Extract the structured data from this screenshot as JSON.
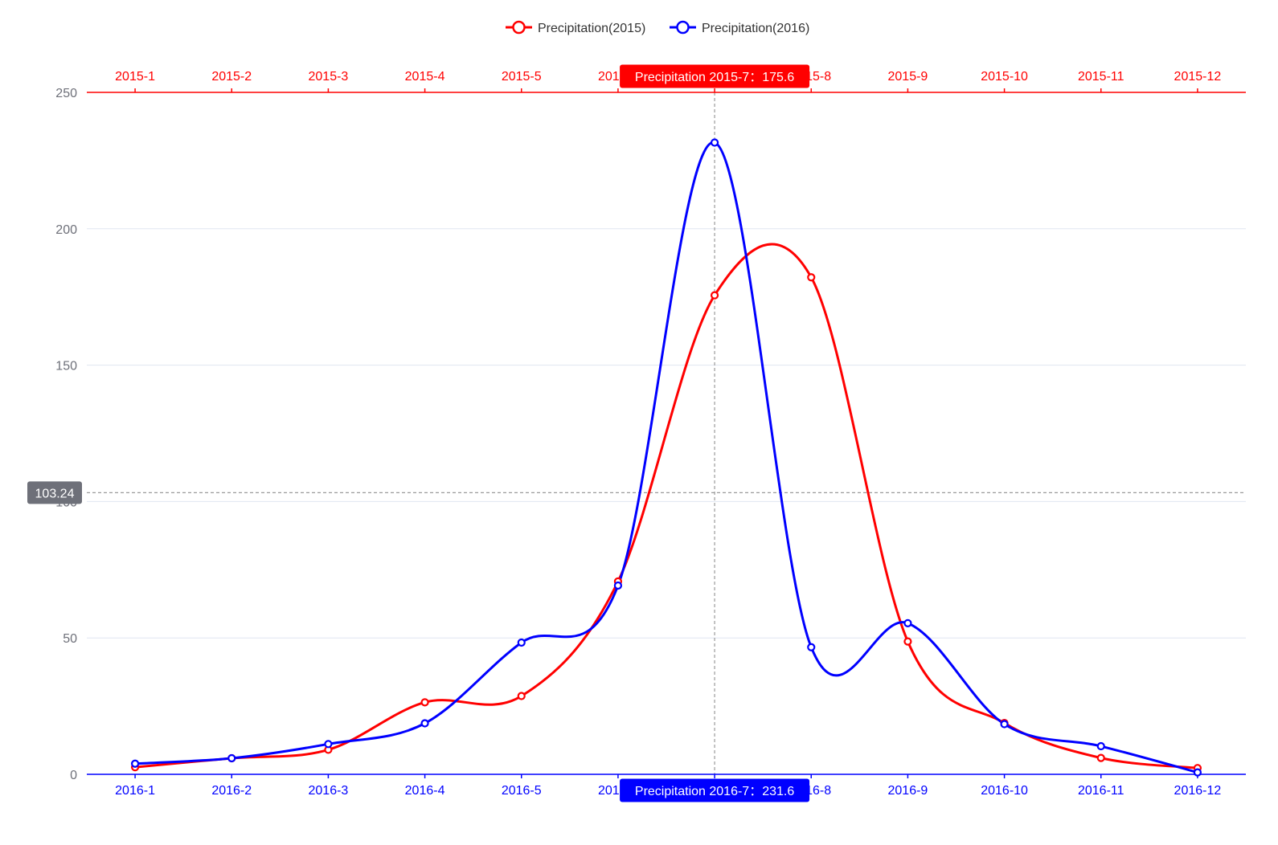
{
  "colors": {
    "series_2015": "#ff0000",
    "series_2016": "#0000ff",
    "grid": "#e0e6f1",
    "y_axis_label": "#6e7079",
    "crosshair": "#999999",
    "y_pointer_bg": "#6e7079"
  },
  "legend": {
    "items": [
      {
        "label": "Precipitation(2015)",
        "color_key": "series_2015",
        "icon": "circle-line-icon"
      },
      {
        "label": "Precipitation(2016)",
        "color_key": "series_2016",
        "icon": "circle-line-icon"
      }
    ],
    "placement": "top-center"
  },
  "pointer": {
    "top_label": "Precipitation  2015-7：175.6",
    "bottom_label": "Precipitation  2016-7：231.6",
    "y_label": "103.24",
    "y_value": 103.24,
    "category_index": 6
  },
  "chart_data": {
    "type": "line",
    "smooth": true,
    "x_top": {
      "categories": [
        "2015-1",
        "2015-2",
        "2015-3",
        "2015-4",
        "2015-5",
        "2015-6",
        "2015-7",
        "2015-8",
        "2015-9",
        "2015-10",
        "2015-11",
        "2015-12"
      ],
      "color_key": "series_2015"
    },
    "x_bottom": {
      "categories": [
        "2016-1",
        "2016-2",
        "2016-3",
        "2016-4",
        "2016-5",
        "2016-6",
        "2016-7",
        "2016-8",
        "2016-9",
        "2016-10",
        "2016-11",
        "2016-12"
      ],
      "color_key": "series_2016"
    },
    "y": {
      "min": 0,
      "max": 250,
      "ticks": [
        0,
        50,
        100,
        150,
        200,
        250
      ]
    },
    "grid": true,
    "series": [
      {
        "name": "Precipitation(2015)",
        "axis": "top",
        "color_key": "series_2015",
        "values": [
          2.6,
          5.9,
          9.0,
          26.4,
          28.7,
          70.7,
          175.6,
          182.2,
          48.7,
          18.8,
          6.0,
          2.3
        ]
      },
      {
        "name": "Precipitation(2016)",
        "axis": "bottom",
        "color_key": "series_2016",
        "values": [
          3.9,
          5.9,
          11.1,
          18.7,
          48.3,
          69.2,
          231.6,
          46.6,
          55.4,
          18.4,
          10.3,
          0.7
        ]
      }
    ]
  }
}
